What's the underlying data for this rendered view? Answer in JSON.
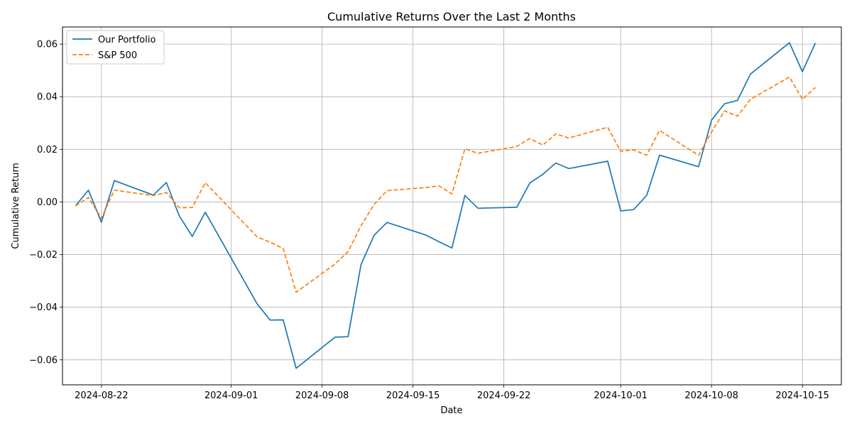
{
  "chart_data": {
    "type": "line",
    "title": "Cumulative Returns Over the Last 2 Months",
    "xlabel": "Date",
    "ylabel": "Cumulative Return",
    "xlim": [
      "2024-08-19",
      "2024-10-18"
    ],
    "ylim": [
      -0.0695,
      0.0665
    ],
    "grid": true,
    "legend_position": "top-left",
    "x_ticks": [
      "2024-08-22",
      "2024-09-01",
      "2024-09-08",
      "2024-09-15",
      "2024-09-22",
      "2024-10-01",
      "2024-10-08",
      "2024-10-15"
    ],
    "y_ticks": [
      -0.06,
      -0.04,
      -0.02,
      0.0,
      0.02,
      0.04,
      0.06
    ],
    "y_tick_labels": [
      "−0.06",
      "−0.04",
      "−0.02",
      "0.00",
      "0.02",
      "0.04",
      "0.06"
    ],
    "x": [
      "2024-08-20",
      "2024-08-21",
      "2024-08-22",
      "2024-08-23",
      "2024-08-26",
      "2024-08-27",
      "2024-08-28",
      "2024-08-29",
      "2024-08-30",
      "2024-09-03",
      "2024-09-04",
      "2024-09-05",
      "2024-09-06",
      "2024-09-09",
      "2024-09-10",
      "2024-09-11",
      "2024-09-12",
      "2024-09-13",
      "2024-09-16",
      "2024-09-17",
      "2024-09-18",
      "2024-09-19",
      "2024-09-20",
      "2024-09-23",
      "2024-09-24",
      "2024-09-25",
      "2024-09-26",
      "2024-09-27",
      "2024-09-30",
      "2024-10-01",
      "2024-10-02",
      "2024-10-03",
      "2024-10-04",
      "2024-10-07",
      "2024-10-08",
      "2024-10-09",
      "2024-10-10",
      "2024-10-11",
      "2024-10-14",
      "2024-10-15",
      "2024-10-16"
    ],
    "series": [
      {
        "name": "Our Portfolio",
        "color": "#1f77b4",
        "dash": "solid",
        "values": [
          -0.0015,
          0.0045,
          -0.0077,
          0.0081,
          0.0026,
          0.0074,
          -0.0053,
          -0.0131,
          -0.0039,
          -0.0388,
          -0.0449,
          -0.0448,
          -0.0632,
          -0.0514,
          -0.0512,
          -0.0238,
          -0.0127,
          -0.0078,
          -0.0126,
          -0.0151,
          -0.0175,
          0.0025,
          -0.0024,
          -0.002,
          0.0072,
          0.0105,
          0.0148,
          0.0127,
          0.0155,
          -0.0034,
          -0.0029,
          0.0025,
          0.0178,
          0.0134,
          0.0311,
          0.0373,
          0.0386,
          0.0486,
          0.0605,
          0.0495,
          0.0604
        ]
      },
      {
        "name": "S&P 500",
        "color": "#ff7f0e",
        "dash": "dashed",
        "values": [
          -0.0015,
          0.0017,
          -0.0062,
          0.0045,
          0.0024,
          0.0036,
          -0.0022,
          -0.0021,
          0.0073,
          -0.0133,
          -0.0153,
          -0.0177,
          -0.0343,
          -0.0236,
          -0.0189,
          -0.009,
          -0.001,
          0.0043,
          0.0055,
          0.0061,
          0.0031,
          0.0202,
          0.0185,
          0.0211,
          0.0241,
          0.0216,
          0.0259,
          0.0243,
          0.0284,
          0.0193,
          0.0198,
          0.0178,
          0.0272,
          0.0177,
          0.0266,
          0.0346,
          0.0326,
          0.039,
          0.0475,
          0.039,
          0.0435
        ]
      }
    ]
  }
}
